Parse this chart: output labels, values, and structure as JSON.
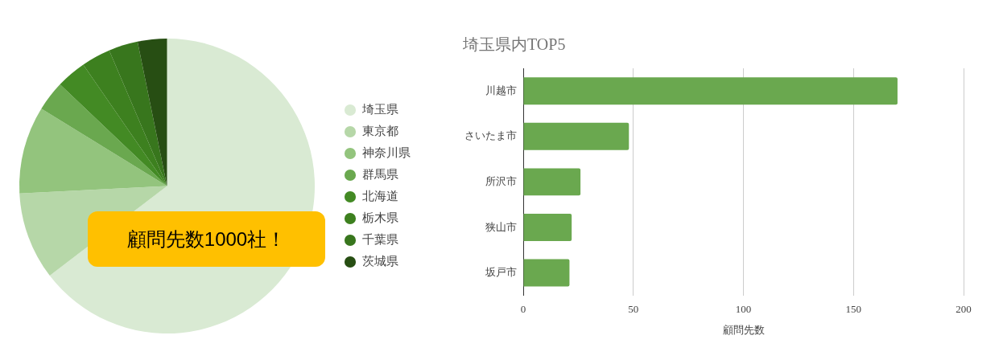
{
  "chart_data": [
    {
      "type": "pie",
      "categories": [
        "埼玉県",
        "東京都",
        "神奈川県",
        "群馬県",
        "北海道",
        "栃木県",
        "千葉県",
        "茨城県"
      ],
      "values": [
        64.6,
        9.6,
        9.6,
        3.3,
        3.3,
        3.2,
        3.2,
        3.2
      ],
      "colors": [
        "#d9ead3",
        "#b6d7a8",
        "#93c47d",
        "#6aa84f",
        "#438a24",
        "#3d801f",
        "#38761d",
        "#274e13"
      ],
      "legend": "right",
      "annotations": [
        "顧問先数1000社！"
      ]
    },
    {
      "type": "bar",
      "orientation": "horizontal",
      "title": "埼玉県内TOP5",
      "xlabel": "顧問先数",
      "categories": [
        "川越市",
        "さいたま市",
        "所沢市",
        "狭山市",
        "坂戸市"
      ],
      "values": [
        170,
        48,
        26,
        22,
        21
      ],
      "color": "#6aa84f",
      "xlim": [
        0,
        200
      ],
      "xticks": [
        0,
        50,
        100,
        150,
        200
      ],
      "grid": "x"
    }
  ]
}
